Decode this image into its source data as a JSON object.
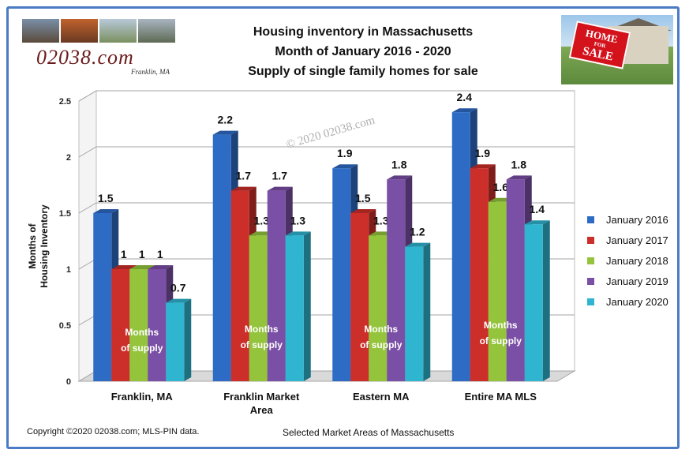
{
  "header": {
    "title_lines": [
      "Housing inventory in Massachusetts",
      "Month of January  2016 - 2020",
      "Supply of single family homes for sale"
    ],
    "logo_text": "02038.com",
    "logo_subtext": "Franklin, MA",
    "sign_line1": "HOME",
    "sign_line2": "FOR",
    "sign_line3": "SALE"
  },
  "footer": {
    "copyright": "Copyright ©2020  02038.com; MLS-PIN data.",
    "xlabel": "Selected Market Areas of Massachusetts"
  },
  "watermark": "© 2020 02038.com",
  "chart_data": {
    "type": "bar",
    "title": "Housing inventory in Massachusetts — Month of January 2016 - 2020 — Supply of single family homes for sale",
    "categories": [
      [
        "Franklin, MA"
      ],
      [
        "Franklin Market",
        "Area"
      ],
      [
        "Eastern MA"
      ],
      [
        "Entire MA MLS"
      ]
    ],
    "series": [
      {
        "name": "January 2016",
        "values": [
          1.5,
          2.2,
          1.9,
          2.4
        ],
        "color": "#2e6bc4"
      },
      {
        "name": "January 2017",
        "values": [
          1,
          1.7,
          1.5,
          1.9
        ],
        "color": "#cc2e2a"
      },
      {
        "name": "January 2018",
        "values": [
          1,
          1.3,
          1.3,
          1.6
        ],
        "color": "#94c43c"
      },
      {
        "name": "January 2019",
        "values": [
          1,
          1.7,
          1.8,
          1.8
        ],
        "color": "#7a4fa6"
      },
      {
        "name": "January 2020",
        "values": [
          0.7,
          1.3,
          1.2,
          1.4
        ],
        "color": "#2fb5cf"
      }
    ],
    "data_labels": [
      [
        "1.5",
        "1",
        "1",
        "1",
        "0.7"
      ],
      [
        "2.2",
        "1.7",
        "1.3",
        "1.7",
        "1.3"
      ],
      [
        "1.9",
        "1.5",
        "1.3",
        "1.8",
        "1.2"
      ],
      [
        "2.4",
        "1.9",
        "1.6",
        "1.8",
        "1.4"
      ]
    ],
    "annotation_lines": [
      "Months",
      "of supply"
    ],
    "ylabel_lines": [
      "Months of",
      "Housing Inventory"
    ],
    "xlabel": "Selected Market Areas of Massachusetts",
    "yticks": [
      "0",
      "0.5",
      "1",
      "1.5",
      "2",
      "2.5"
    ],
    "ytick_values": [
      0,
      0.5,
      1,
      1.5,
      2,
      2.5
    ],
    "ylim": [
      0,
      2.5
    ],
    "grid": true,
    "legend_position": "right"
  }
}
